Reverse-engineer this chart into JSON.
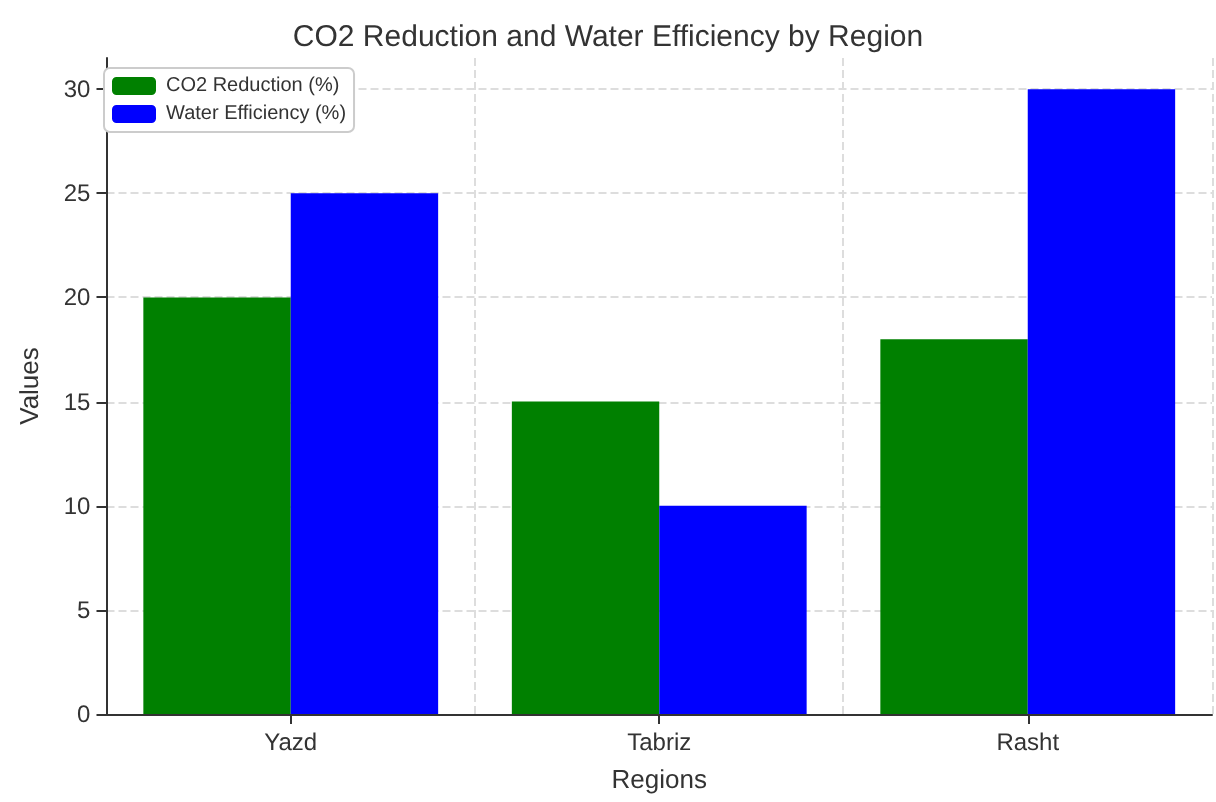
{
  "chart_data": {
    "type": "bar",
    "title": "CO2 Reduction and Water Efficiency by Region",
    "xlabel": "Regions",
    "ylabel": "Values",
    "categories": [
      "Yazd",
      "Tabriz",
      "Rasht"
    ],
    "series": [
      {
        "name": "CO2 Reduction (%)",
        "color": "#008000",
        "values": [
          20,
          15,
          18
        ]
      },
      {
        "name": "Water Efficiency (%)",
        "color": "#0000ff",
        "values": [
          25,
          10,
          30
        ]
      }
    ],
    "ylim": [
      0,
      31.5
    ],
    "yticks": [
      0,
      5,
      10,
      15,
      20,
      25,
      30
    ],
    "grid": true,
    "legend": "top left"
  }
}
